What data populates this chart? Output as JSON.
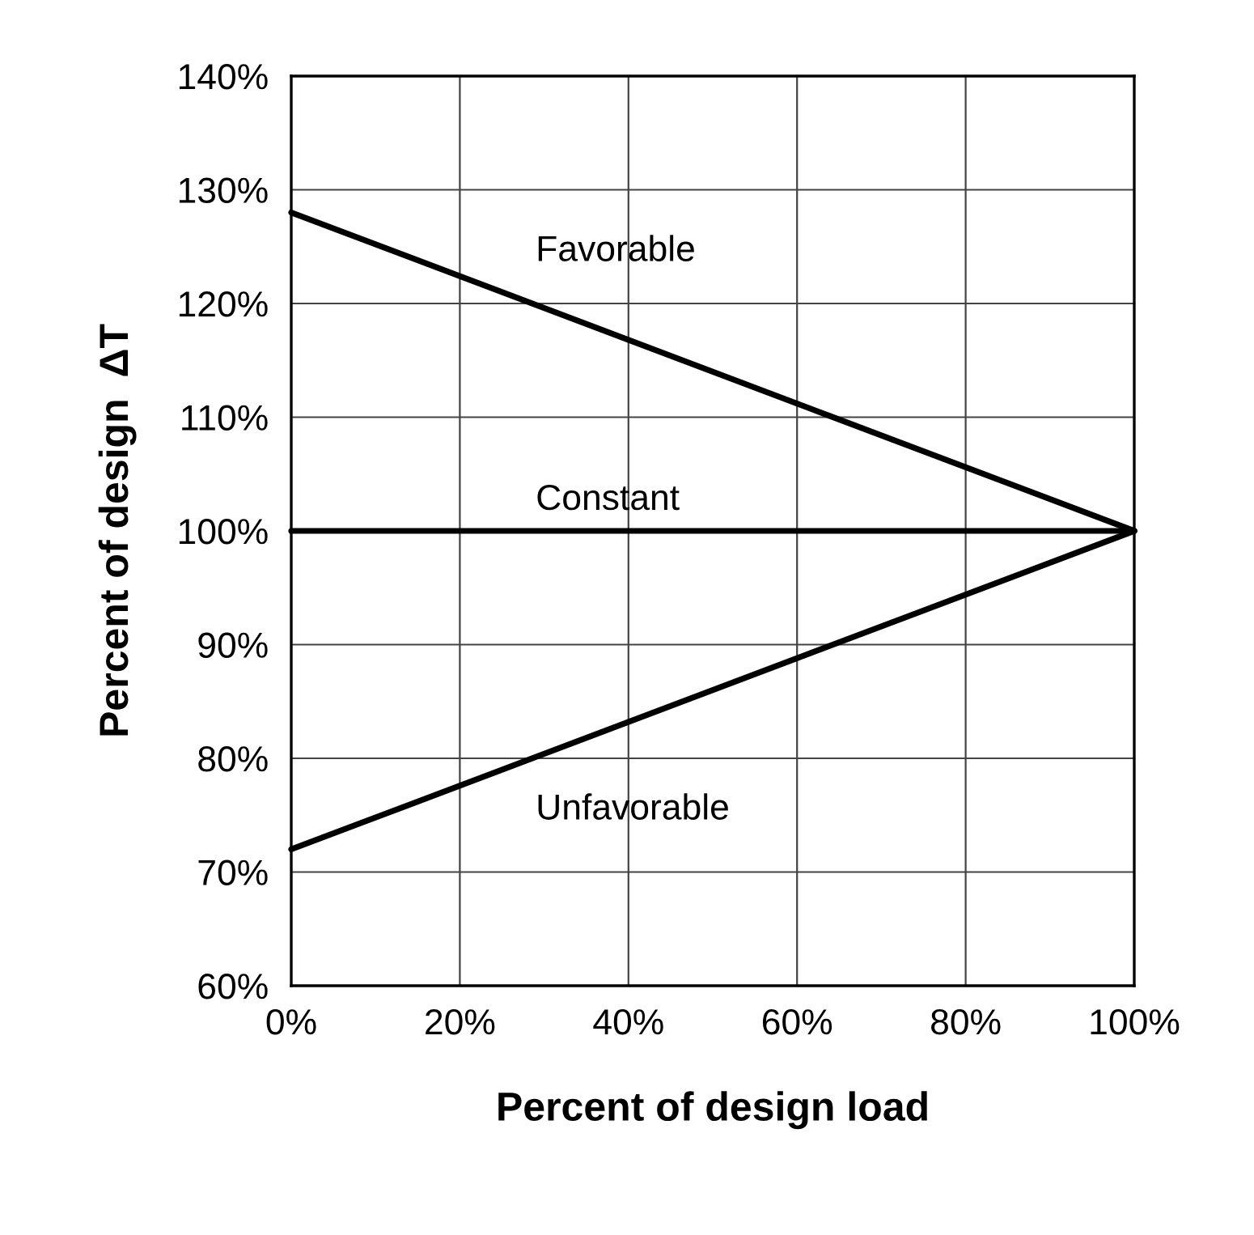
{
  "chart_data": {
    "type": "line",
    "xlabel": "Percent of design load",
    "ylabel": "Percent of design  ΔT",
    "x": [
      0,
      100
    ],
    "series": [
      {
        "name": "Favorable",
        "color": "#000000",
        "values": [
          128,
          100
        ]
      },
      {
        "name": "Constant",
        "color": "#000000",
        "values": [
          100,
          100
        ]
      },
      {
        "name": "Unfavorable",
        "color": "#000000",
        "values": [
          72,
          100
        ]
      }
    ],
    "xlim": [
      0,
      100
    ],
    "ylim": [
      60,
      140
    ],
    "xticks": [
      {
        "value": 0,
        "label": "0%"
      },
      {
        "value": 20,
        "label": "20%"
      },
      {
        "value": 40,
        "label": "40%"
      },
      {
        "value": 60,
        "label": "60%"
      },
      {
        "value": 80,
        "label": "80%"
      },
      {
        "value": 100,
        "label": "100%"
      }
    ],
    "yticks": [
      {
        "value": 60,
        "label": "60%"
      },
      {
        "value": 70,
        "label": "70%"
      },
      {
        "value": 80,
        "label": "80%"
      },
      {
        "value": 90,
        "label": "90%"
      },
      {
        "value": 100,
        "label": "100%"
      },
      {
        "value": 110,
        "label": "110%"
      },
      {
        "value": 120,
        "label": "120%"
      },
      {
        "value": 130,
        "label": "130%"
      },
      {
        "value": 140,
        "label": "140%"
      }
    ],
    "grid": true,
    "marker": "none",
    "line_style": "solid"
  }
}
